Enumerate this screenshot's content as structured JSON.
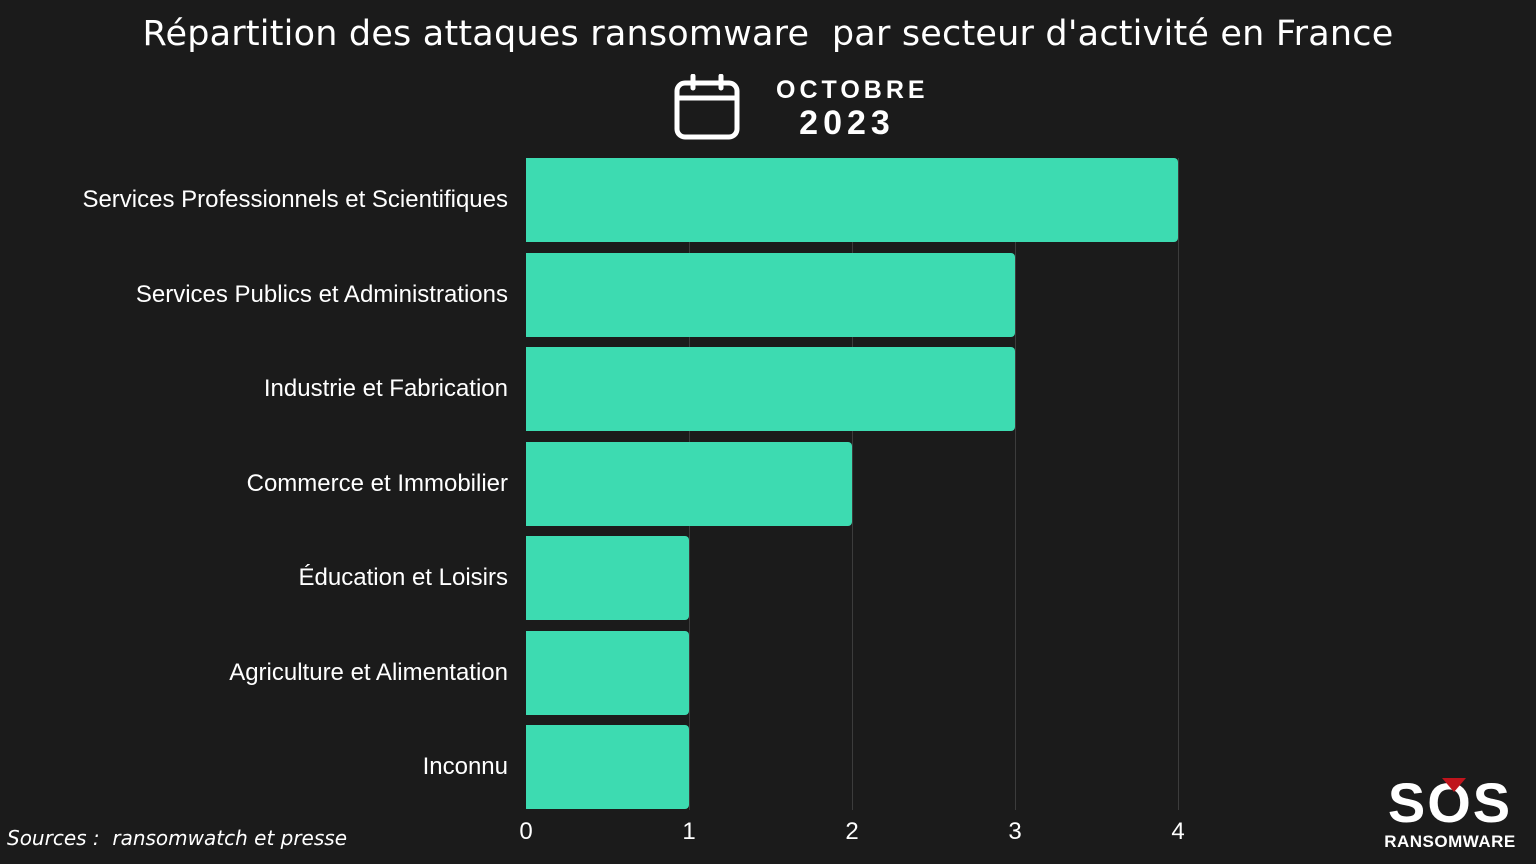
{
  "header": {
    "title": "Répartition des attaques ransomware  par secteur d'activité en France",
    "month": "OCTOBRE",
    "year": "2023",
    "icon": "calendar-icon"
  },
  "footer": {
    "source": "Sources :  ransomwatch et presse",
    "logo_main": "SOS",
    "logo_sub": "RANSOMWARE",
    "logo_accent_color": "#c0141c"
  },
  "colors": {
    "background": "#1b1b1b",
    "bar": "#3ddbb1",
    "gridline": "#3c3c3c",
    "text": "#ffffff"
  },
  "chart_data": {
    "type": "bar",
    "orientation": "horizontal",
    "title": "Répartition des attaques ransomware  par secteur d'activité en France",
    "subtitle": "OCTOBRE 2023",
    "categories": [
      "Services Professionnels et Scientifiques",
      "Services Publics et Administrations",
      "Industrie et Fabrication",
      "Commerce et Immobilier",
      "Éducation et Loisirs",
      "Agriculture et Alimentation",
      "Inconnu"
    ],
    "values": [
      4,
      3,
      3,
      2,
      1,
      1,
      1
    ],
    "xlabel": "",
    "ylabel": "",
    "xlim": [
      0,
      4
    ],
    "xticks": [
      "0",
      "1",
      "2",
      "3",
      "4"
    ],
    "grid": "vertical",
    "legend": "none",
    "annotation": "Sources :  ransomwatch et presse"
  }
}
